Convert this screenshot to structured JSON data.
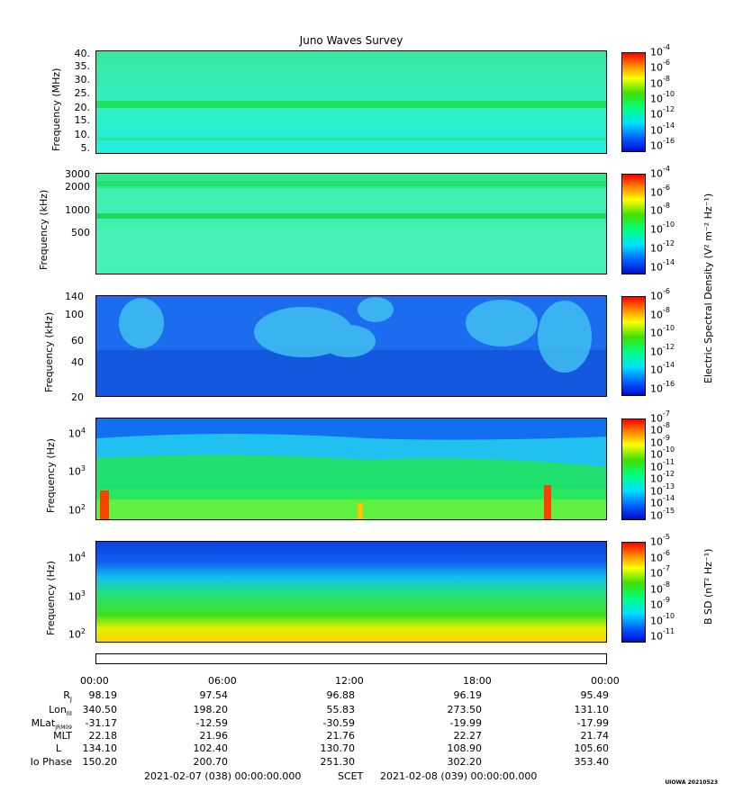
{
  "title": "Juno Waves Survey",
  "panels": [
    {
      "ylabel": "Frequency (MHz)",
      "yticks": [
        "40.",
        "35.",
        "30.",
        "25.",
        "20.",
        "15.",
        "10.",
        "5."
      ],
      "cbar_ticks": [
        "-4",
        "-6",
        "-8",
        "-10",
        "-12",
        "-14",
        "-16"
      ]
    },
    {
      "ylabel": "Frequency (kHz)",
      "yticks": [
        "3000",
        "2000",
        "1000",
        "500"
      ],
      "cbar_ticks": [
        "-4",
        "-6",
        "-8",
        "-10",
        "-12",
        "-14"
      ]
    },
    {
      "ylabel": "Frequency (kHz)",
      "yticks": [
        "140",
        "100",
        "60",
        "40",
        "20"
      ],
      "cbar_ticks": [
        "-6",
        "-8",
        "-10",
        "-12",
        "-14",
        "-16"
      ]
    },
    {
      "ylabel": "Frequency (Hz)",
      "yticks": [
        "10",
        "10",
        "10"
      ],
      "yexp": [
        "4",
        "3",
        "2"
      ],
      "cbar_ticks": [
        "-7",
        "-8",
        "-9",
        "-10",
        "-11",
        "-12",
        "-13",
        "-14",
        "-15"
      ]
    },
    {
      "ylabel": "Frequency (Hz)",
      "yticks": [
        "10",
        "10",
        "10"
      ],
      "yexp": [
        "4",
        "3",
        "2"
      ],
      "cbar_ticks": [
        "-5",
        "-6",
        "-7",
        "-8",
        "-9",
        "-10",
        "-11"
      ]
    }
  ],
  "cbar_base": "10",
  "cbar_label_e": "Electric Spectral Density (V² m⁻² Hz⁻¹)",
  "cbar_label_b": "B SD (nT² Hz⁻¹)",
  "times": [
    "00:00",
    "06:00",
    "12:00",
    "18:00",
    "00:00"
  ],
  "ephemeris": {
    "labels": [
      "RJ",
      "LonIII",
      "MLatJRM09",
      "MLT",
      "L",
      "Io Phase"
    ],
    "rows": [
      [
        "98.19",
        "97.54",
        "96.88",
        "96.19",
        "95.49"
      ],
      [
        "340.50",
        "198.20",
        "55.83",
        "273.50",
        "131.10"
      ],
      [
        "-31.17",
        "-12.59",
        "-30.59",
        "-19.99",
        "-17.99"
      ],
      [
        "22.18",
        "21.96",
        "21.76",
        "22.27",
        "21.74"
      ],
      [
        "134.10",
        "102.40",
        "130.70",
        "108.90",
        "105.60"
      ],
      [
        "150.20",
        "200.70",
        "251.30",
        "302.20",
        "353.40"
      ]
    ]
  },
  "footer": {
    "start": "2021-02-07 (038) 00:00:00.000",
    "mid": "SCET",
    "end": "2021-02-08 (039) 00:00:00.000"
  },
  "stamp": "UIOWA 20210523"
}
